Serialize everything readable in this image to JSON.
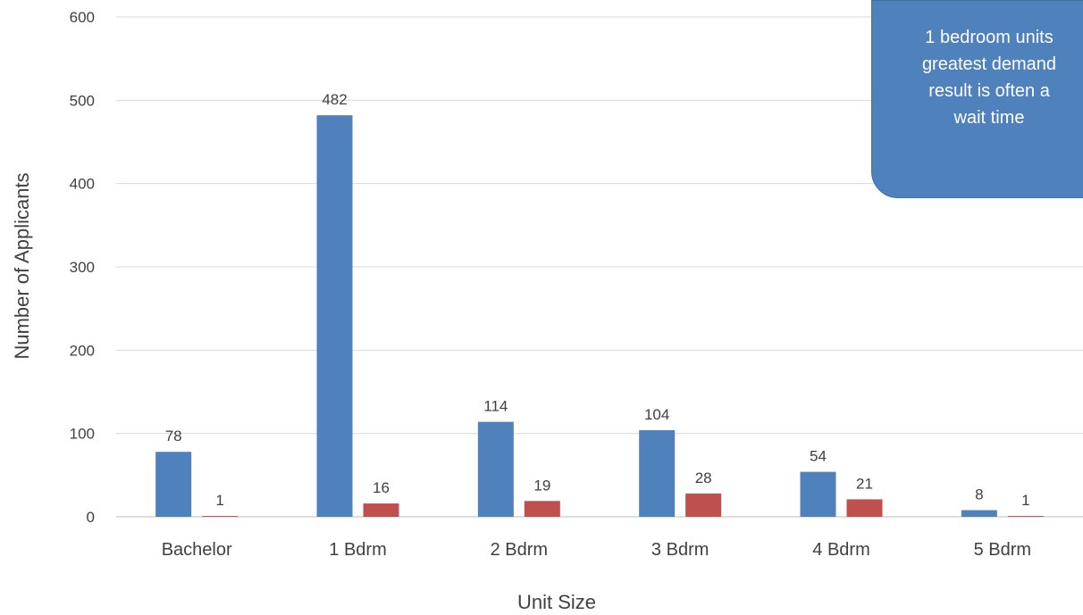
{
  "chart_data": {
    "type": "bar",
    "categories": [
      "Bachelor",
      "1 Bdrm",
      "2 Bdrm",
      "3 Bdrm",
      "4 Bdrm",
      "5 Bdrm"
    ],
    "series": [
      {
        "values": [
          78,
          482,
          114,
          104,
          54,
          8
        ],
        "color": "#4f81bd"
      },
      {
        "values": [
          1,
          16,
          19,
          28,
          21,
          1
        ],
        "color": "#c0504d"
      }
    ],
    "xlabel": "Unit Size",
    "ylabel": "Number of Applicants",
    "ylim": [
      0,
      600
    ],
    "yticks": [
      "0",
      "100",
      "200",
      "300",
      "400",
      "500",
      "600"
    ],
    "grid": true,
    "annotation": {
      "lines": [
        "1 bedroom units",
        "greatest demand",
        "result is often a",
        "wait time"
      ]
    }
  }
}
